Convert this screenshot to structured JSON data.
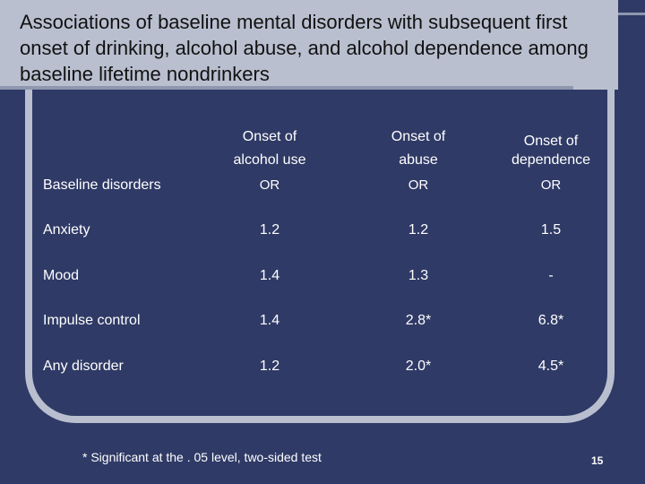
{
  "slide": {
    "title": "Associations of baseline mental disorders with subsequent first onset of drinking, alcohol abuse, and alcohol dependence among baseline lifetime nondrinkers",
    "footnote": "* Significant at the . 05 level, two-sided test",
    "page_number": "15"
  },
  "table": {
    "row_header": "Baseline disorders",
    "columns": [
      {
        "line1": "Onset of",
        "line2": "alcohol use",
        "sub": "OR"
      },
      {
        "line1": "Onset of",
        "line2": "abuse",
        "sub": "OR"
      },
      {
        "line1": "Onset of",
        "line2": "dependence",
        "sub": "OR"
      }
    ],
    "rows": [
      {
        "label": "Anxiety",
        "values": [
          "1.2",
          "1.2",
          "1.5"
        ]
      },
      {
        "label": "Mood",
        "values": [
          "1.4",
          "1.3",
          "-"
        ]
      },
      {
        "label": "Impulse control",
        "values": [
          "1.4",
          "2.8*",
          "6.8*"
        ]
      },
      {
        "label": "Any disorder",
        "values": [
          "1.2",
          "2.0*",
          "4.5*"
        ]
      }
    ]
  }
}
